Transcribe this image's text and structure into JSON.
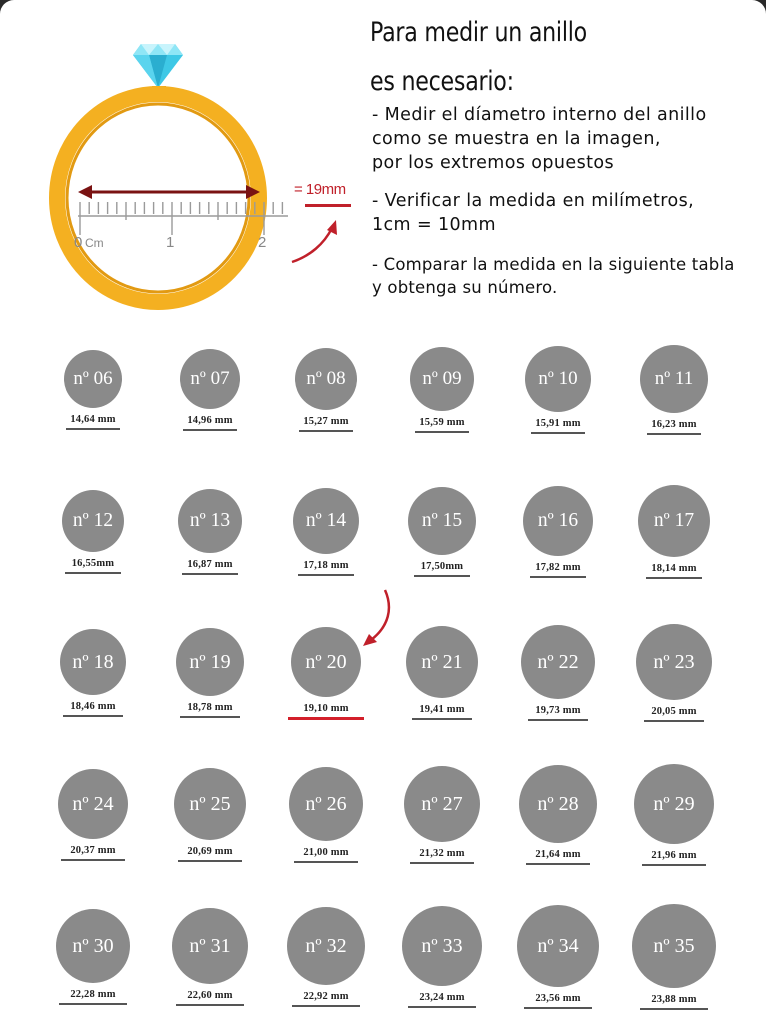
{
  "header": {
    "title_lines": [
      "Para medir un anillo",
      "es necesario:"
    ],
    "instructions": [
      "- Medir el díametro interno del anillo\ncomo se muestra en la imagen,\npor los extremos opuestos",
      "- Verificar la medida en milímetros,\n1cm = 10mm",
      "- Comparar la medida en la siguiente tabla\ny obtenga su número."
    ]
  },
  "illustration": {
    "measure_label": "= 19mm",
    "ruler_labels": [
      "0",
      "Cm",
      "1",
      "2"
    ],
    "ring_color": "#f4b021",
    "gem_color": "#3ec8e6",
    "diameter_arrow_color": "#7a1212",
    "accent_color": "#c0202a"
  },
  "sizes": [
    {
      "number": "nº 06",
      "mm": "14,64 mm"
    },
    {
      "number": "nº 07",
      "mm": "14,96 mm"
    },
    {
      "number": "nº 08",
      "mm": "15,27 mm"
    },
    {
      "number": "nº 09",
      "mm": "15,59 mm"
    },
    {
      "number": "nº 10",
      "mm": "15,91 mm"
    },
    {
      "number": "nº 11",
      "mm": "16,23 mm"
    },
    {
      "number": "nº 12",
      "mm": "16,55mm"
    },
    {
      "number": "nº 13",
      "mm": "16,87 mm"
    },
    {
      "number": "nº 14",
      "mm": "17,18 mm"
    },
    {
      "number": "nº 15",
      "mm": "17,50mm"
    },
    {
      "number": "nº 16",
      "mm": "17,82 mm"
    },
    {
      "number": "nº 17",
      "mm": "18,14 mm"
    },
    {
      "number": "nº 18",
      "mm": "18,46 mm"
    },
    {
      "number": "nº 19",
      "mm": "18,78 mm"
    },
    {
      "number": "nº 20",
      "mm": "19,10 mm",
      "highlight": true
    },
    {
      "number": "nº 21",
      "mm": "19,41 mm"
    },
    {
      "number": "nº 22",
      "mm": "19,73 mm"
    },
    {
      "number": "nº 23",
      "mm": "20,05 mm"
    },
    {
      "number": "nº 24",
      "mm": "20,37 mm"
    },
    {
      "number": "nº 25",
      "mm": "20,69 mm"
    },
    {
      "number": "nº 26",
      "mm": "21,00 mm"
    },
    {
      "number": "nº 27",
      "mm": "21,32 mm"
    },
    {
      "number": "nº 28",
      "mm": "21,64 mm"
    },
    {
      "number": "nº 29",
      "mm": "21,96 mm"
    },
    {
      "number": "nº 30",
      "mm": "22,28 mm"
    },
    {
      "number": "nº 31",
      "mm": "22,60 mm"
    },
    {
      "number": "nº 32",
      "mm": "22,92 mm"
    },
    {
      "number": "nº 33",
      "mm": "23,24 mm"
    },
    {
      "number": "nº 34",
      "mm": "23,56 mm"
    },
    {
      "number": "nº 35",
      "mm": "23,88 mm"
    }
  ]
}
